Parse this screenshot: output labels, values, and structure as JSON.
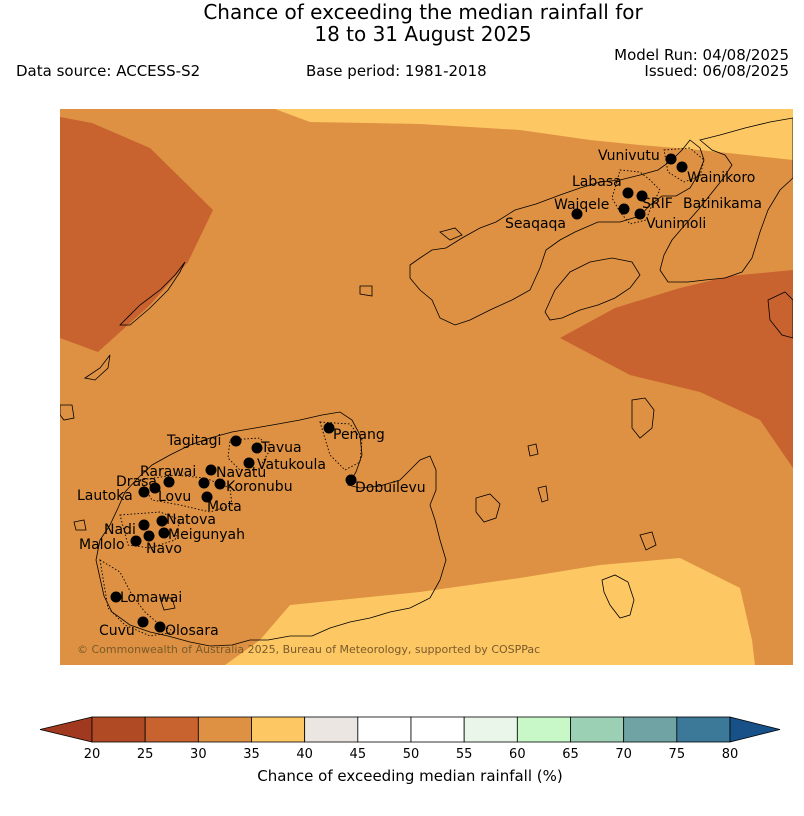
{
  "title_line1": "Chance of exceeding the median rainfall for",
  "title_line2": "18 to 31 August 2025",
  "model_run": "Model Run: 04/08/2025",
  "issued": "Issued: 06/08/2025",
  "data_source": "Data source: ACCESS-S2",
  "base_period": "Base period: 1981-2018",
  "copyright": "© Commonwealth of Australia 2025, Bureau of Meteorology, supported by COSPPac",
  "colorbar": {
    "title": "Chance of exceeding median rainfall (%)",
    "ticks": [
      "20",
      "25",
      "30",
      "35",
      "40",
      "45",
      "50",
      "55",
      "60",
      "65",
      "70",
      "75",
      "80"
    ],
    "colors": [
      "#a0391f",
      "#b04a25",
      "#c8622f",
      "#de9142",
      "#fdc864",
      "#ece6e2",
      "#ffffff",
      "#ffffff",
      "#eaf6ea",
      "#c8f8c8",
      "#9cd0b4",
      "#70a4a4",
      "#3c7898",
      "#185088"
    ]
  },
  "stations": [
    {
      "name": "Vunivutu"
    },
    {
      "name": "Wainikoro"
    },
    {
      "name": "Labasa"
    },
    {
      "name": "SRIF"
    },
    {
      "name": "Batinikama"
    },
    {
      "name": "Waiqele"
    },
    {
      "name": "Seaqaqa"
    },
    {
      "name": "Vunimoli"
    },
    {
      "name": "Penang"
    },
    {
      "name": "Tagitagi"
    },
    {
      "name": "Tavua"
    },
    {
      "name": "Vatukoula"
    },
    {
      "name": "Rarawai"
    },
    {
      "name": "Navatu"
    },
    {
      "name": "Drasa"
    },
    {
      "name": "Koronubu"
    },
    {
      "name": "Lautoka"
    },
    {
      "name": "Lovu"
    },
    {
      "name": "Mota"
    },
    {
      "name": "Dobuilevu"
    },
    {
      "name": "Natova"
    },
    {
      "name": "Nadi"
    },
    {
      "name": "Meigunyah"
    },
    {
      "name": "Malolo"
    },
    {
      "name": "Navo"
    },
    {
      "name": "Lomawai"
    },
    {
      "name": "Cuvu"
    },
    {
      "name": "Olosara"
    }
  ]
}
